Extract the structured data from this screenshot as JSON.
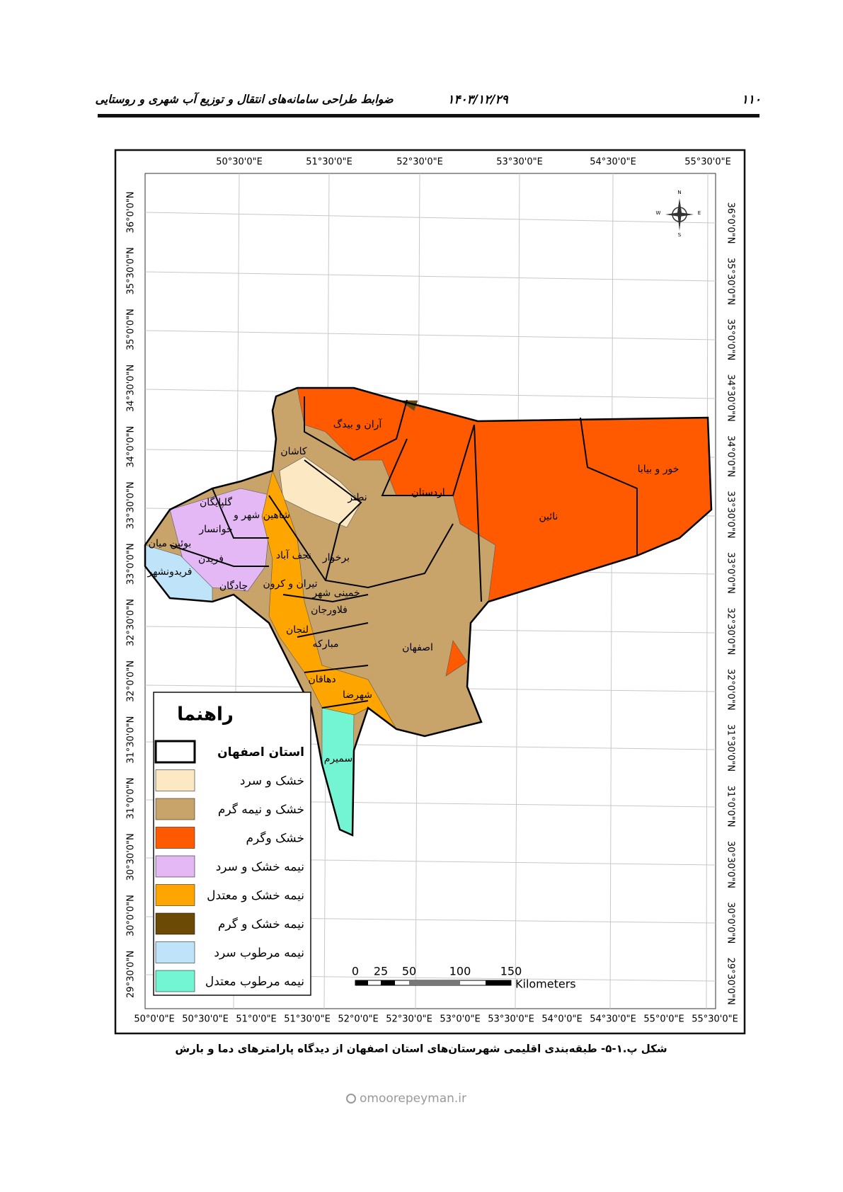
{
  "header": {
    "page_number": "۱۱۰",
    "date": "۱۴۰۳/۱۲/۲۹",
    "title": "ضوابط طراحی سامانه‌های انتقال و توزیع آب شهری و روستایی"
  },
  "map": {
    "top_ticks": [
      "50°30'0\"E",
      "51°30'0\"E",
      "52°30'0\"E",
      "53°30'0\"E",
      "54°30'0\"E",
      "55°30'0\"E"
    ],
    "bottom_ticks": [
      "50°0'0\"E",
      "50°30'0\"E",
      "51°0'0\"E",
      "51°30'0\"E",
      "52°0'0\"E",
      "52°30'0\"E",
      "53°0'0\"E",
      "53°30'0\"E",
      "54°0'0\"E",
      "54°30'0\"E",
      "55°0'0\"E",
      "55°30'0\"E"
    ],
    "left_ticks": [
      "36°0'0\"N",
      "35°30'0\"N",
      "35°0'0\"N",
      "34°30'0\"N",
      "34°0'0\"N",
      "33°30'0\"N",
      "33°0'0\"N",
      "32°30'0\"N",
      "32°0'0\"N",
      "31°30'0\"N",
      "31°0'0\"N",
      "30°30'0\"N",
      "30°0'0\"N",
      "29°30'0\"N"
    ],
    "right_ticks": [
      "36°0'0\"N",
      "35°30'0\"N",
      "35°0'0\"N",
      "34°30'0\"N",
      "34°0'0\"N",
      "33°30'0\"N",
      "33°0'0\"N",
      "32°30'0\"N",
      "32°0'0\"N",
      "31°30'0\"N",
      "31°0'0\"N",
      "30°30'0\"N",
      "30°0'0\"N",
      "29°30'0\"N"
    ],
    "north_arrow": {
      "n": "N",
      "s": "S",
      "e": "E",
      "w": "W"
    },
    "districts": [
      "آران و بیدگ",
      "کاشان",
      "نطنز",
      "اردستان",
      "خور و بیابا",
      "نائین",
      "گلپایگان",
      "شاهین شهر و",
      "خوانسار",
      "بوئین میان",
      "نجف آباد",
      "برخوار",
      "فریدن",
      "فریدونشهر",
      "تیران و کرون",
      "چادگان",
      "خمینی شهر",
      "فلاورجان",
      "اصفهان",
      "لنجان",
      "مبارکه",
      "دهاقان",
      "شهرضا",
      "سمیرم"
    ],
    "legend": {
      "title": "راهنما",
      "items": [
        {
          "label": "استان اصفهان"
        },
        {
          "label": "خشک و سرد",
          "color": "#fde8c4"
        },
        {
          "label": "خشک و نیمه گرم",
          "color": "#c9a46a"
        },
        {
          "label": "خشک وگرم",
          "color": "#ff5a00"
        },
        {
          "label": "نیمه خشک و سرد",
          "color": "#e3b8f5"
        },
        {
          "label": "نیمه خشک و معتدل",
          "color": "#ffa500"
        },
        {
          "label": "نیمه خشک و گرم",
          "color": "#6b4a05"
        },
        {
          "label": "نیمه مرطوب سرد",
          "color": "#bfe3f8"
        },
        {
          "label": "نیمه مرطوب معتدل",
          "color": "#73f5d4"
        }
      ]
    },
    "scale_bar": {
      "ticks": [
        "0",
        "25",
        "50",
        "100",
        "150"
      ],
      "unit": "Kilometers"
    }
  },
  "caption": "شکل پ.۱-۵- طبقه‌بندی اقلیمی شهرستان‌های استان اصفهان از دیدگاه پارامترهای دما و بارش",
  "watermark": "omoorepeyman.ir"
}
